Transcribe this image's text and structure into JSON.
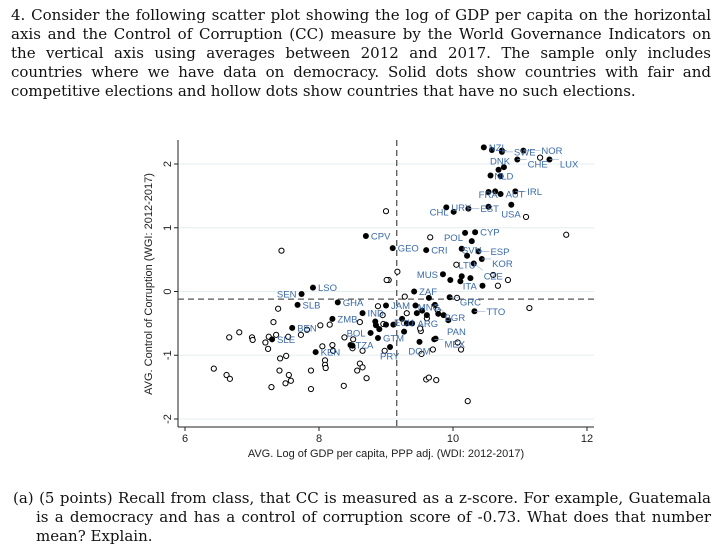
{
  "question": {
    "number": "4.",
    "text": "Consider the following scatter plot showing the log of GDP per capita on the horizontal axis and the Control of Corruption (CC) measure by the World Governance Indicators on the vertical axis using averages between 2012 and 2017. The sample only includes countries where we have data on democracy. Solid dots show countries with fair and competitive elections and hollow dots show countries that have no such elections."
  },
  "part_a": {
    "label": "(a) (5 points)",
    "text": "Recall from class, that CC is measured as a z-score. For example, Guatemala is a democracy and has a control of corruption score of -0.73. What does that number mean? Explain."
  },
  "chart_data": {
    "type": "scatter",
    "xlabel": "AVG. Log of GDP per capita, PPP adj. (WDI: 2012-2017)",
    "ylabel": "AVG. Control of Corruption (WGI: 2012-2017)",
    "xlim": [
      6,
      12.1
    ],
    "ylim": [
      -2.2,
      2.4
    ],
    "xticks": [
      "6",
      "8",
      "10",
      "12"
    ],
    "yticks": [
      "-2",
      "-1",
      "0",
      "1",
      "2"
    ],
    "grid": true,
    "reference_lines": {
      "x": 9.16,
      "y": -0.12
    },
    "colors": {
      "filled": "#000000",
      "hollow": "#000000",
      "label": "#3a6aa8",
      "grid": "#e3eef0"
    },
    "democracies": [
      {
        "x": 10.46,
        "y": 2.26,
        "label": "NZL"
      },
      {
        "x": 10.58,
        "y": 2.22,
        "label": "DNK"
      },
      {
        "x": 10.73,
        "y": 2.21,
        "label": ""
      },
      {
        "x": 10.73,
        "y": 2.19,
        "label": "SWE"
      },
      {
        "x": 11.05,
        "y": 2.21,
        "label": "NOR"
      },
      {
        "x": 10.96,
        "y": 2.07,
        "label": "CHE"
      },
      {
        "x": 11.44,
        "y": 2.07,
        "label": "LUX"
      },
      {
        "x": 10.76,
        "y": 1.95,
        "label": "NLD"
      },
      {
        "x": 10.68,
        "y": 1.91,
        "label": ""
      },
      {
        "x": 10.56,
        "y": 1.82,
        "label": ""
      },
      {
        "x": 10.71,
        "y": 1.81,
        "label": ""
      },
      {
        "x": 10.53,
        "y": 1.56,
        "label": ""
      },
      {
        "x": 10.63,
        "y": 1.57,
        "label": ""
      },
      {
        "x": 10.71,
        "y": 1.53,
        "label": "AUT"
      },
      {
        "x": 10.93,
        "y": 1.57,
        "label": "IRL"
      },
      {
        "x": 9.9,
        "y": 1.32,
        "label": "URY"
      },
      {
        "x": 10.01,
        "y": 1.25,
        "label": "CHL"
      },
      {
        "x": 10.23,
        "y": 1.3,
        "label": "EST"
      },
      {
        "x": 10.53,
        "y": 1.33,
        "label": "FRA"
      },
      {
        "x": 10.87,
        "y": 1.36,
        "label": "USA"
      },
      {
        "x": 8.7,
        "y": 0.87,
        "label": "CPV"
      },
      {
        "x": 9.1,
        "y": 0.68,
        "label": "GEO"
      },
      {
        "x": 9.6,
        "y": 0.65,
        "label": "CRI"
      },
      {
        "x": 10.18,
        "y": 0.92,
        "label": ""
      },
      {
        "x": 10.33,
        "y": 0.93,
        "label": "CYP"
      },
      {
        "x": 10.28,
        "y": 0.79,
        "label": "SVN"
      },
      {
        "x": 10.13,
        "y": 0.67,
        "label": "POL"
      },
      {
        "x": 10.38,
        "y": 0.63,
        "label": "ESP"
      },
      {
        "x": 10.21,
        "y": 0.56,
        "label": "LTU"
      },
      {
        "x": 10.43,
        "y": 0.51,
        "label": "KOR"
      },
      {
        "x": 10.31,
        "y": 0.44,
        "label": "CZE"
      },
      {
        "x": 9.85,
        "y": 0.27,
        "label": "MUS"
      },
      {
        "x": 9.96,
        "y": 0.18,
        "label": ""
      },
      {
        "x": 10.13,
        "y": 0.24,
        "label": ""
      },
      {
        "x": 10.11,
        "y": 0.16,
        "label": ""
      },
      {
        "x": 10.26,
        "y": 0.21,
        "label": ""
      },
      {
        "x": 10.44,
        "y": 0.09,
        "label": "ITA"
      },
      {
        "x": 7.91,
        "y": 0.06,
        "label": "LSO"
      },
      {
        "x": 7.74,
        "y": -0.04,
        "label": "SEN"
      },
      {
        "x": 7.68,
        "y": -0.21,
        "label": "SLB"
      },
      {
        "x": 8.28,
        "y": -0.17,
        "label": "GHA"
      },
      {
        "x": 9.42,
        "y": 0.0,
        "label": "ZAF"
      },
      {
        "x": 9.64,
        "y": -0.1,
        "label": "MNG"
      },
      {
        "x": 9.95,
        "y": -0.09,
        "label": "GRC"
      },
      {
        "x": 9.0,
        "y": -0.22,
        "label": "JAM"
      },
      {
        "x": 8.65,
        "y": -0.34,
        "label": "IND"
      },
      {
        "x": 9.73,
        "y": -0.21,
        "label": "BGR"
      },
      {
        "x": 9.86,
        "y": -0.37,
        "label": "ARG"
      },
      {
        "x": 9.93,
        "y": -0.45,
        "label": "PAN"
      },
      {
        "x": 10.32,
        "y": -0.31,
        "label": "TTO"
      },
      {
        "x": 8.2,
        "y": -0.43,
        "label": "ZMB"
      },
      {
        "x": 7.6,
        "y": -0.57,
        "label": "BEN"
      },
      {
        "x": 7.3,
        "y": -0.75,
        "label": "SLE"
      },
      {
        "x": 7.95,
        "y": -0.95,
        "label": "KEN"
      },
      {
        "x": 8.47,
        "y": -0.84,
        "label": "TZA"
      },
      {
        "x": 8.88,
        "y": -0.73,
        "label": "GTM"
      },
      {
        "x": 9.06,
        "y": -0.87,
        "label": "PRY"
      },
      {
        "x": 8.77,
        "y": -0.65,
        "label": "BOL"
      },
      {
        "x": 9.27,
        "y": -0.63,
        "label": "ECU"
      },
      {
        "x": 9.5,
        "y": -0.79,
        "label": "DOM"
      },
      {
        "x": 9.72,
        "y": -0.75,
        "label": "MEX"
      },
      {
        "x": 8.84,
        "y": -0.47,
        "label": ""
      },
      {
        "x": 8.85,
        "y": -0.53,
        "label": ""
      },
      {
        "x": 8.9,
        "y": -0.59,
        "label": ""
      },
      {
        "x": 9.0,
        "y": -0.52,
        "label": ""
      },
      {
        "x": 9.11,
        "y": -0.52,
        "label": ""
      },
      {
        "x": 9.24,
        "y": -0.43,
        "label": ""
      },
      {
        "x": 9.31,
        "y": -0.5,
        "label": ""
      },
      {
        "x": 9.39,
        "y": -0.5,
        "label": ""
      },
      {
        "x": 9.46,
        "y": -0.34,
        "label": ""
      },
      {
        "x": 9.54,
        "y": -0.3,
        "label": ""
      },
      {
        "x": 9.61,
        "y": -0.37,
        "label": ""
      },
      {
        "x": 9.44,
        "y": -0.22,
        "label": ""
      },
      {
        "x": 9.78,
        "y": -0.35,
        "label": ""
      },
      {
        "x": 9.74,
        "y": -0.74,
        "label": ""
      },
      {
        "x": 8.5,
        "y": -0.85,
        "label": ""
      }
    ],
    "non_democracies": [
      [
        9.0,
        1.26
      ],
      [
        7.44,
        0.64
      ],
      [
        9.66,
        0.85
      ],
      [
        11.09,
        1.17
      ],
      [
        11.69,
        0.89
      ],
      [
        11.3,
        2.1
      ],
      [
        9.17,
        0.31
      ],
      [
        9.04,
        0.18
      ],
      [
        9.01,
        0.18
      ],
      [
        10.05,
        0.42
      ],
      [
        10.6,
        0.26
      ],
      [
        10.82,
        0.18
      ],
      [
        10.67,
        0.09
      ],
      [
        11.14,
        -0.26
      ],
      [
        9.28,
        -0.08
      ],
      [
        8.88,
        -0.23
      ],
      [
        9.31,
        -0.34
      ],
      [
        8.95,
        -0.37
      ],
      [
        9.61,
        -0.42
      ],
      [
        9.77,
        -0.29
      ],
      [
        10.06,
        -0.1
      ],
      [
        8.61,
        -0.48
      ],
      [
        8.02,
        -0.53
      ],
      [
        8.16,
        -0.52
      ],
      [
        7.82,
        -0.6
      ],
      [
        7.73,
        -0.68
      ],
      [
        7.39,
        -0.27
      ],
      [
        7.32,
        -0.48
      ],
      [
        7.36,
        -0.68
      ],
      [
        7.25,
        -0.71
      ],
      [
        7.54,
        -0.71
      ],
      [
        7.2,
        -0.8
      ],
      [
        7.24,
        -0.9
      ],
      [
        7.0,
        -0.72
      ],
      [
        7.01,
        -0.76
      ],
      [
        6.81,
        -0.64
      ],
      [
        6.66,
        -0.72
      ],
      [
        6.43,
        -1.21
      ],
      [
        6.62,
        -1.31
      ],
      [
        6.67,
        -1.37
      ],
      [
        7.29,
        -1.5
      ],
      [
        7.41,
        -1.24
      ],
      [
        7.42,
        -1.05
      ],
      [
        7.51,
        -1.01
      ],
      [
        7.55,
        -1.31
      ],
      [
        7.58,
        -1.4
      ],
      [
        7.5,
        -1.44
      ],
      [
        7.88,
        -1.24
      ],
      [
        7.88,
        -1.53
      ],
      [
        8.05,
        -0.86
      ],
      [
        8.2,
        -0.84
      ],
      [
        8.21,
        -0.93
      ],
      [
        8.09,
        -1.08
      ],
      [
        8.09,
        -1.15
      ],
      [
        8.1,
        -1.2
      ],
      [
        8.38,
        -0.72
      ],
      [
        8.51,
        -0.75
      ],
      [
        8.5,
        -0.89
      ],
      [
        8.65,
        -0.93
      ],
      [
        8.61,
        -1.13
      ],
      [
        8.65,
        -1.19
      ],
      [
        8.57,
        -1.24
      ],
      [
        8.71,
        -1.36
      ],
      [
        8.37,
        -1.48
      ],
      [
        8.98,
        -0.93
      ],
      [
        8.96,
        -0.51
      ],
      [
        9.53,
        -0.98
      ],
      [
        9.7,
        -0.91
      ],
      [
        9.6,
        -1.38
      ],
      [
        9.64,
        -1.35
      ],
      [
        9.75,
        -1.39
      ],
      [
        10.07,
        -0.8
      ],
      [
        10.12,
        -0.91
      ],
      [
        10.22,
        -1.72
      ],
      [
        9.52,
        -0.62
      ],
      [
        9.51,
        -0.58
      ]
    ]
  }
}
